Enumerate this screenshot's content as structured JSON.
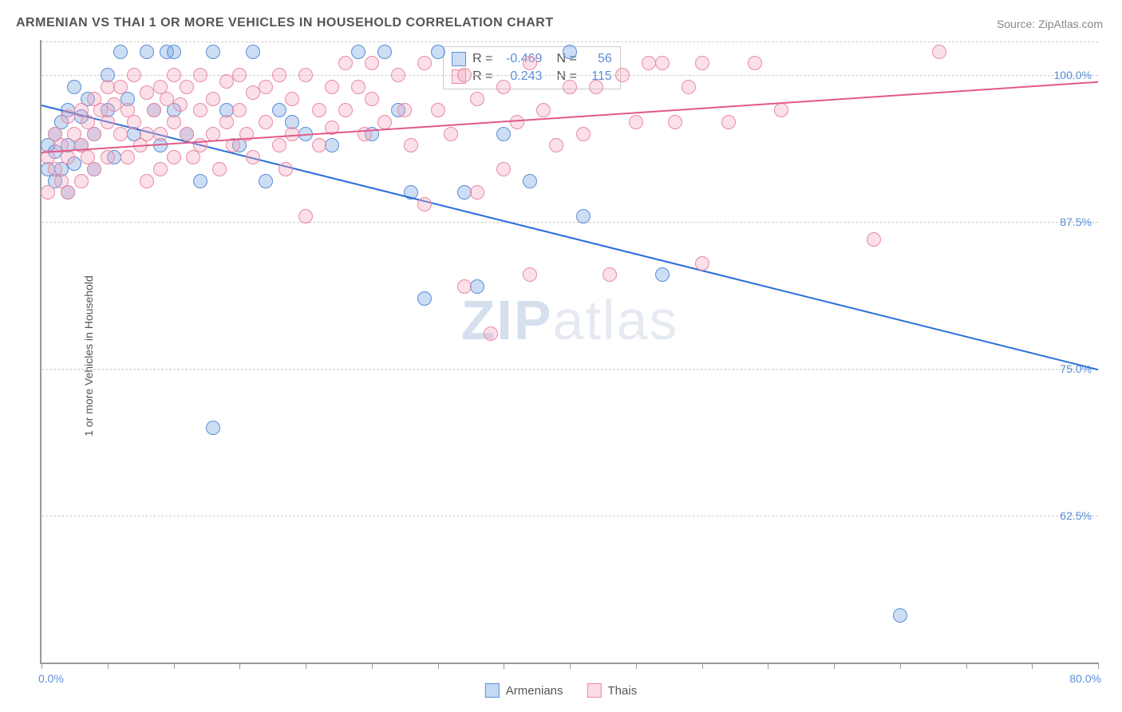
{
  "title": "ARMENIAN VS THAI 1 OR MORE VEHICLES IN HOUSEHOLD CORRELATION CHART",
  "source": "Source: ZipAtlas.com",
  "ylabel": "1 or more Vehicles in Household",
  "watermark_bold": "ZIP",
  "watermark_light": "atlas",
  "chart": {
    "type": "scatter",
    "xlim": [
      0,
      80
    ],
    "ylim": [
      50,
      103
    ],
    "yticks": [
      {
        "v": 62.5,
        "label": "62.5%"
      },
      {
        "v": 75.0,
        "label": "75.0%"
      },
      {
        "v": 87.5,
        "label": "87.5%"
      },
      {
        "v": 100.0,
        "label": "100.0%"
      }
    ],
    "xticks": [
      0,
      5,
      10,
      15,
      20,
      25,
      30,
      35,
      40,
      45,
      50,
      55,
      60,
      65,
      70,
      75,
      80
    ],
    "xaxis_start_label": "0.0%",
    "xaxis_end_label": "80.0%",
    "background_color": "#ffffff",
    "grid_color": "#cccccc",
    "series": [
      {
        "name": "Armenians",
        "color": "#6fa1e0",
        "fill": "rgba(111,161,224,0.35)",
        "stroke": "#5b8dd6",
        "marker_radius": 9,
        "R": "-0.469",
        "N": "56",
        "trend": {
          "x1": 0,
          "y1": 97.5,
          "x2": 80,
          "y2": 75.0,
          "color": "#2a6fd6",
          "width": 2
        },
        "points": [
          {
            "x": 0.5,
            "y": 94
          },
          {
            "x": 0.5,
            "y": 92
          },
          {
            "x": 1,
            "y": 95
          },
          {
            "x": 1,
            "y": 93.5
          },
          {
            "x": 1,
            "y": 91
          },
          {
            "x": 1.5,
            "y": 96
          },
          {
            "x": 1.5,
            "y": 92
          },
          {
            "x": 2,
            "y": 97
          },
          {
            "x": 2,
            "y": 94
          },
          {
            "x": 2,
            "y": 90
          },
          {
            "x": 2.5,
            "y": 99
          },
          {
            "x": 2.5,
            "y": 92.5
          },
          {
            "x": 3,
            "y": 96.5
          },
          {
            "x": 3,
            "y": 94
          },
          {
            "x": 3.5,
            "y": 98
          },
          {
            "x": 4,
            "y": 95
          },
          {
            "x": 4,
            "y": 92
          },
          {
            "x": 5,
            "y": 100
          },
          {
            "x": 5,
            "y": 97
          },
          {
            "x": 5.5,
            "y": 93
          },
          {
            "x": 6,
            "y": 102
          },
          {
            "x": 6.5,
            "y": 98
          },
          {
            "x": 7,
            "y": 95
          },
          {
            "x": 8,
            "y": 102
          },
          {
            "x": 8.5,
            "y": 97
          },
          {
            "x": 9,
            "y": 94
          },
          {
            "x": 9.5,
            "y": 102
          },
          {
            "x": 10,
            "y": 102
          },
          {
            "x": 10,
            "y": 97
          },
          {
            "x": 11,
            "y": 95
          },
          {
            "x": 12,
            "y": 91
          },
          {
            "x": 13,
            "y": 102
          },
          {
            "x": 13,
            "y": 70
          },
          {
            "x": 14,
            "y": 97
          },
          {
            "x": 15,
            "y": 94
          },
          {
            "x": 16,
            "y": 102
          },
          {
            "x": 17,
            "y": 91
          },
          {
            "x": 18,
            "y": 97
          },
          {
            "x": 19,
            "y": 96
          },
          {
            "x": 20,
            "y": 95
          },
          {
            "x": 22,
            "y": 94
          },
          {
            "x": 24,
            "y": 102
          },
          {
            "x": 25,
            "y": 95
          },
          {
            "x": 26,
            "y": 102
          },
          {
            "x": 27,
            "y": 97
          },
          {
            "x": 28,
            "y": 90
          },
          {
            "x": 29,
            "y": 81
          },
          {
            "x": 30,
            "y": 102
          },
          {
            "x": 32,
            "y": 90
          },
          {
            "x": 33,
            "y": 82
          },
          {
            "x": 35,
            "y": 95
          },
          {
            "x": 37,
            "y": 91
          },
          {
            "x": 40,
            "y": 102
          },
          {
            "x": 41,
            "y": 88
          },
          {
            "x": 47,
            "y": 83
          },
          {
            "x": 65,
            "y": 54
          }
        ]
      },
      {
        "name": "Thais",
        "color": "#f4a6bc",
        "fill": "rgba(244,166,188,0.35)",
        "stroke": "#e88aa5",
        "marker_radius": 9,
        "R": "0.243",
        "N": "115",
        "trend": {
          "x1": 0,
          "y1": 93.5,
          "x2": 80,
          "y2": 99.5,
          "color": "#e25a8a",
          "width": 2
        },
        "points": [
          {
            "x": 0.5,
            "y": 93
          },
          {
            "x": 0.5,
            "y": 90
          },
          {
            "x": 1,
            "y": 95
          },
          {
            "x": 1,
            "y": 92
          },
          {
            "x": 1.5,
            "y": 94
          },
          {
            "x": 1.5,
            "y": 91
          },
          {
            "x": 2,
            "y": 96.5
          },
          {
            "x": 2,
            "y": 93
          },
          {
            "x": 2,
            "y": 90
          },
          {
            "x": 2.5,
            "y": 95
          },
          {
            "x": 3,
            "y": 97
          },
          {
            "x": 3,
            "y": 94
          },
          {
            "x": 3,
            "y": 91
          },
          {
            "x": 3.5,
            "y": 96
          },
          {
            "x": 3.5,
            "y": 93
          },
          {
            "x": 4,
            "y": 98
          },
          {
            "x": 4,
            "y": 95
          },
          {
            "x": 4,
            "y": 92
          },
          {
            "x": 4.5,
            "y": 97
          },
          {
            "x": 5,
            "y": 99
          },
          {
            "x": 5,
            "y": 96
          },
          {
            "x": 5,
            "y": 93
          },
          {
            "x": 5.5,
            "y": 97.5
          },
          {
            "x": 6,
            "y": 99
          },
          {
            "x": 6,
            "y": 95
          },
          {
            "x": 6.5,
            "y": 97
          },
          {
            "x": 6.5,
            "y": 93
          },
          {
            "x": 7,
            "y": 100
          },
          {
            "x": 7,
            "y": 96
          },
          {
            "x": 7.5,
            "y": 94
          },
          {
            "x": 8,
            "y": 98.5
          },
          {
            "x": 8,
            "y": 95
          },
          {
            "x": 8,
            "y": 91
          },
          {
            "x": 8.5,
            "y": 97
          },
          {
            "x": 9,
            "y": 99
          },
          {
            "x": 9,
            "y": 95
          },
          {
            "x": 9,
            "y": 92
          },
          {
            "x": 9.5,
            "y": 98
          },
          {
            "x": 10,
            "y": 100
          },
          {
            "x": 10,
            "y": 96
          },
          {
            "x": 10,
            "y": 93
          },
          {
            "x": 10.5,
            "y": 97.5
          },
          {
            "x": 11,
            "y": 99
          },
          {
            "x": 11,
            "y": 95
          },
          {
            "x": 11.5,
            "y": 93
          },
          {
            "x": 12,
            "y": 100
          },
          {
            "x": 12,
            "y": 97
          },
          {
            "x": 12,
            "y": 94
          },
          {
            "x": 13,
            "y": 98
          },
          {
            "x": 13,
            "y": 95
          },
          {
            "x": 13.5,
            "y": 92
          },
          {
            "x": 14,
            "y": 99.5
          },
          {
            "x": 14,
            "y": 96
          },
          {
            "x": 14.5,
            "y": 94
          },
          {
            "x": 15,
            "y": 100
          },
          {
            "x": 15,
            "y": 97
          },
          {
            "x": 15.5,
            "y": 95
          },
          {
            "x": 16,
            "y": 98.5
          },
          {
            "x": 16,
            "y": 93
          },
          {
            "x": 17,
            "y": 99
          },
          {
            "x": 17,
            "y": 96
          },
          {
            "x": 18,
            "y": 100
          },
          {
            "x": 18,
            "y": 94
          },
          {
            "x": 18.5,
            "y": 92
          },
          {
            "x": 19,
            "y": 98
          },
          {
            "x": 19,
            "y": 95
          },
          {
            "x": 20,
            "y": 100
          },
          {
            "x": 20,
            "y": 88
          },
          {
            "x": 21,
            "y": 97
          },
          {
            "x": 21,
            "y": 94
          },
          {
            "x": 22,
            "y": 99
          },
          {
            "x": 22,
            "y": 95.5
          },
          {
            "x": 23,
            "y": 101
          },
          {
            "x": 23,
            "y": 97
          },
          {
            "x": 24,
            "y": 99
          },
          {
            "x": 24.5,
            "y": 95
          },
          {
            "x": 25,
            "y": 101
          },
          {
            "x": 25,
            "y": 98
          },
          {
            "x": 26,
            "y": 96
          },
          {
            "x": 27,
            "y": 100
          },
          {
            "x": 27.5,
            "y": 97
          },
          {
            "x": 28,
            "y": 94
          },
          {
            "x": 29,
            "y": 101
          },
          {
            "x": 29,
            "y": 89
          },
          {
            "x": 30,
            "y": 97
          },
          {
            "x": 31,
            "y": 95
          },
          {
            "x": 32,
            "y": 100
          },
          {
            "x": 32,
            "y": 82
          },
          {
            "x": 33,
            "y": 98
          },
          {
            "x": 33,
            "y": 90
          },
          {
            "x": 34,
            "y": 78
          },
          {
            "x": 35,
            "y": 99
          },
          {
            "x": 35,
            "y": 92
          },
          {
            "x": 36,
            "y": 96
          },
          {
            "x": 37,
            "y": 101
          },
          {
            "x": 37,
            "y": 83
          },
          {
            "x": 38,
            "y": 97
          },
          {
            "x": 39,
            "y": 94
          },
          {
            "x": 40,
            "y": 99
          },
          {
            "x": 41,
            "y": 95
          },
          {
            "x": 42,
            "y": 99
          },
          {
            "x": 43,
            "y": 83
          },
          {
            "x": 44,
            "y": 100
          },
          {
            "x": 45,
            "y": 96
          },
          {
            "x": 46,
            "y": 101
          },
          {
            "x": 47,
            "y": 101
          },
          {
            "x": 48,
            "y": 96
          },
          {
            "x": 49,
            "y": 99
          },
          {
            "x": 50,
            "y": 101
          },
          {
            "x": 50,
            "y": 84
          },
          {
            "x": 52,
            "y": 96
          },
          {
            "x": 54,
            "y": 101
          },
          {
            "x": 56,
            "y": 97
          },
          {
            "x": 63,
            "y": 86
          },
          {
            "x": 68,
            "y": 102
          }
        ]
      }
    ]
  },
  "legend": {
    "items": [
      {
        "label": "Armenians",
        "fill": "rgba(111,161,224,0.4)",
        "stroke": "#5b8dd6"
      },
      {
        "label": "Thais",
        "fill": "rgba(244,166,188,0.4)",
        "stroke": "#e88aa5"
      }
    ]
  }
}
